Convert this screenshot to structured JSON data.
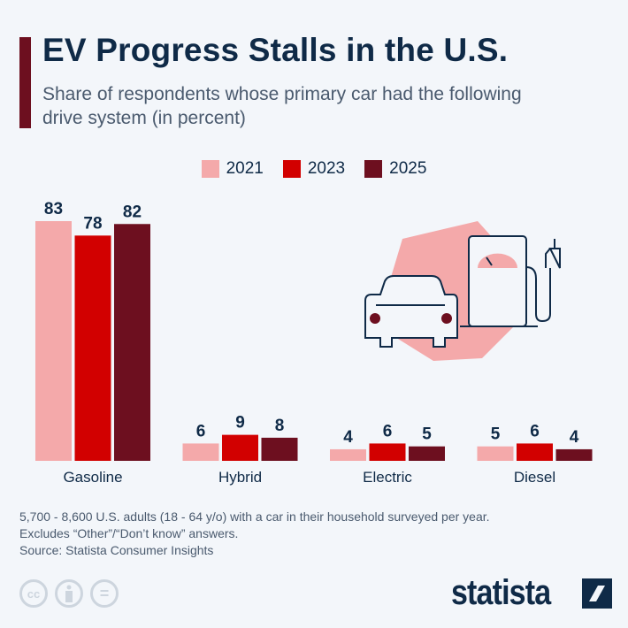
{
  "header": {
    "title": "EV Progress Stalls in the U.S.",
    "subtitle": "Share of respondents whose primary car had the following drive system (in percent)"
  },
  "chart_data": {
    "type": "bar",
    "categories": [
      "Gasoline",
      "Hybrid",
      "Electric",
      "Diesel"
    ],
    "series": [
      {
        "name": "2021",
        "color": "#f4a9aa",
        "values": [
          83,
          6,
          4,
          5
        ]
      },
      {
        "name": "2023",
        "color": "#d20000",
        "values": [
          78,
          9,
          6,
          6
        ]
      },
      {
        "name": "2025",
        "color": "#6d0f1f",
        "values": [
          82,
          8,
          5,
          4
        ]
      }
    ],
    "ylim": [
      0,
      85
    ],
    "grid": false,
    "legend": "top"
  },
  "illustration": {
    "icon": "car-at-fuel-pump-icon"
  },
  "footer": {
    "note_line1": "5,700 - 8,600 U.S. adults (18 - 64 y/o) with a car in their household surveyed per year.",
    "note_line2": "Excludes “Other”/“Don’t know” answers.",
    "source": "Source: Statista Consumer Insights",
    "license_icons": [
      "cc",
      "by",
      "nd"
    ],
    "cc_label": "cc",
    "nd_label": "=",
    "logo": "statista"
  }
}
